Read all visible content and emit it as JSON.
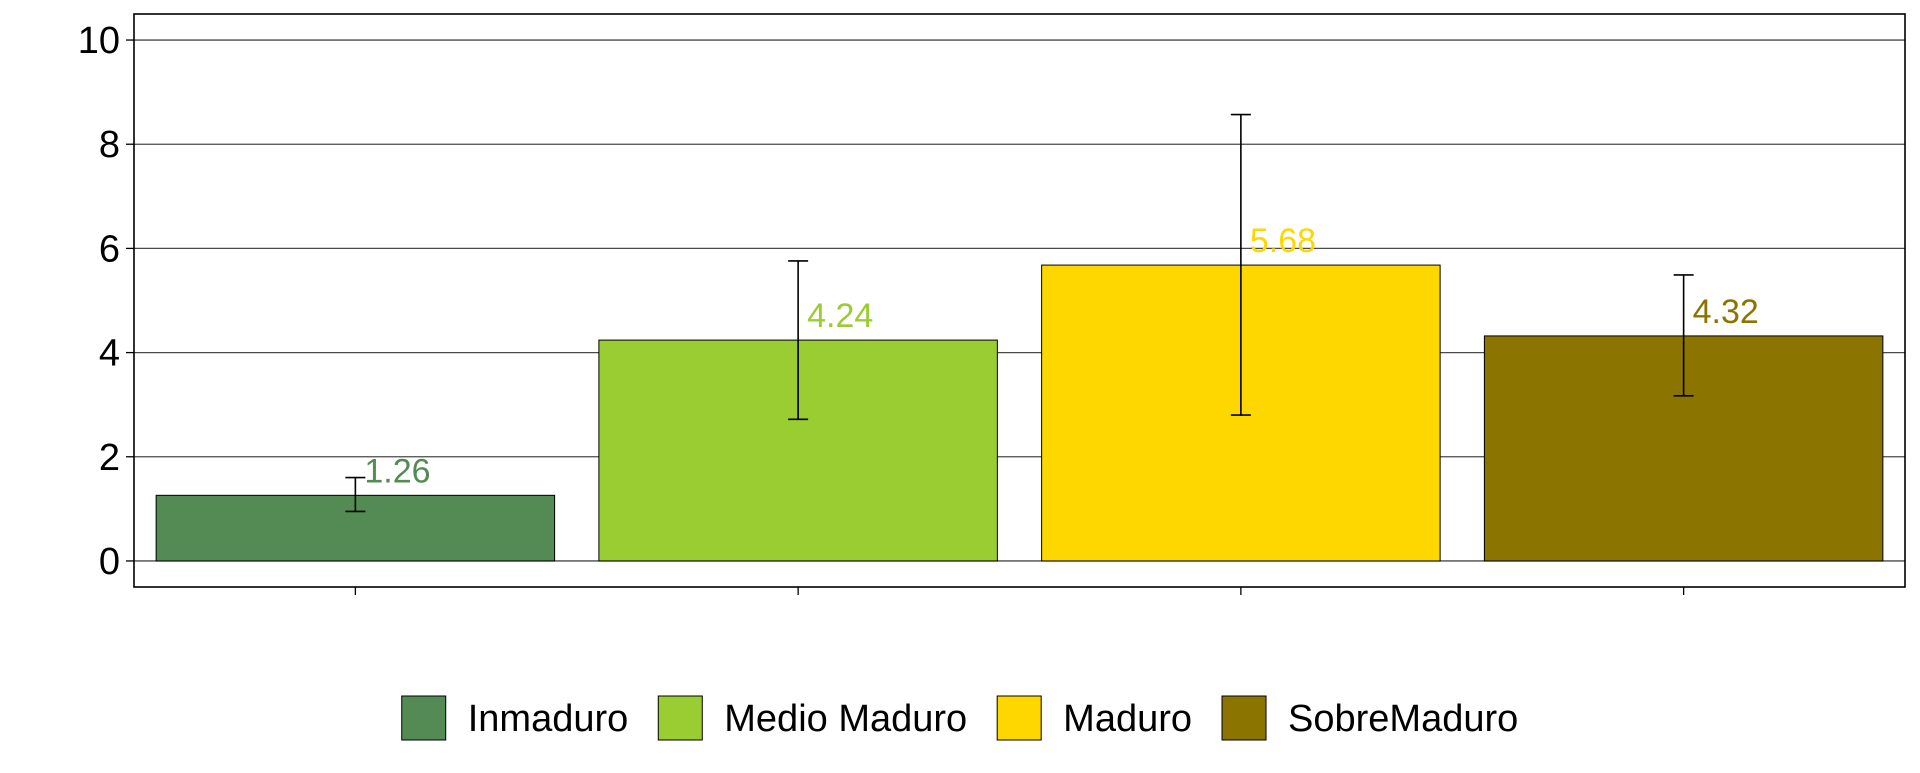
{
  "chart_data": {
    "type": "bar",
    "title": "",
    "xlabel": "",
    "ylabel": "",
    "ylim": [
      -0.5,
      10.5
    ],
    "yticks": [
      0,
      2,
      4,
      6,
      8,
      10
    ],
    "ytick_labels": [
      "0",
      "2",
      "4",
      "6",
      "8",
      "10"
    ],
    "grid": "horizontal",
    "legend_position": "bottom",
    "categories": [
      "Inmaduro",
      "Medio Maduro",
      "Maduro",
      "SobreMaduro"
    ],
    "values": [
      1.26,
      4.24,
      5.68,
      4.32
    ],
    "value_labels": [
      "1.26",
      "4.24",
      "5.68",
      "4.32"
    ],
    "error_low": [
      0.95,
      2.72,
      2.8,
      3.17
    ],
    "error_high": [
      1.6,
      5.76,
      8.57,
      5.49
    ],
    "colors": [
      "#548B54",
      "#9ACD32",
      "#FFD700",
      "#8B7500"
    ],
    "legend": [
      {
        "label": "Inmaduro",
        "color": "#548B54"
      },
      {
        "label": "Medio Maduro",
        "color": "#9ACD32"
      },
      {
        "label": "Maduro",
        "color": "#FFD700"
      },
      {
        "label": "SobreMaduro",
        "color": "#8B7500"
      }
    ]
  }
}
